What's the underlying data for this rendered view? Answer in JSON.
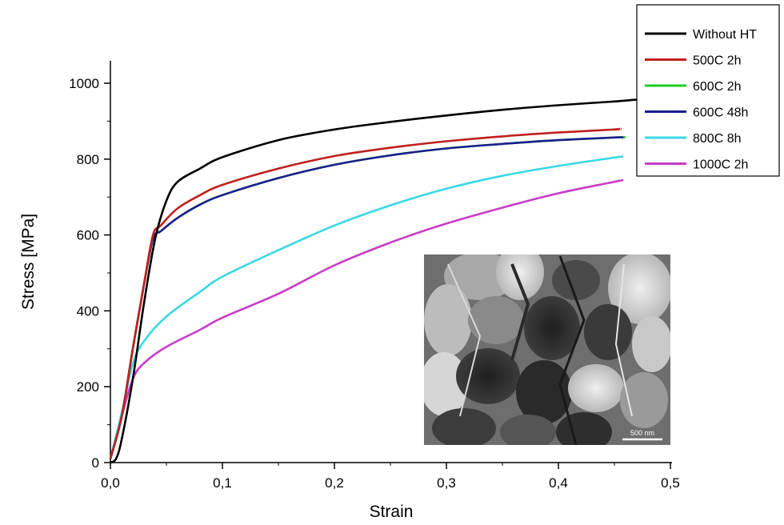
{
  "chart_data": {
    "type": "line",
    "title": "",
    "xlabel": "Strain",
    "ylabel": "Stress [MPa]",
    "xlim": [
      0,
      0.5
    ],
    "ylim": [
      0,
      1050
    ],
    "x_ticks": [
      0,
      0.1,
      0.2,
      0.3,
      0.4,
      0.5
    ],
    "x_tick_labels": [
      "0,0",
      "0,1",
      "0,2",
      "0,3",
      "0,4",
      "0,5"
    ],
    "y_ticks": [
      0,
      200,
      400,
      600,
      800,
      1000
    ],
    "y_tick_labels": [
      "0",
      "200",
      "400",
      "600",
      "800",
      "1000"
    ],
    "grid": false,
    "legend_position": "top-right",
    "series": [
      {
        "name": "Without HT",
        "color": "#000000",
        "points": [
          [
            0,
            0
          ],
          [
            0.005,
            10
          ],
          [
            0.01,
            60
          ],
          [
            0.02,
            220
          ],
          [
            0.03,
            420
          ],
          [
            0.04,
            590
          ],
          [
            0.05,
            690
          ],
          [
            0.06,
            740
          ],
          [
            0.08,
            775
          ],
          [
            0.1,
            805
          ],
          [
            0.15,
            850
          ],
          [
            0.2,
            878
          ],
          [
            0.25,
            898
          ],
          [
            0.3,
            915
          ],
          [
            0.35,
            930
          ],
          [
            0.4,
            942
          ],
          [
            0.45,
            952
          ],
          [
            0.47,
            957
          ]
        ]
      },
      {
        "name": "500C 2h",
        "color": "#c0201e",
        "points": [
          [
            0,
            10
          ],
          [
            0.01,
            120
          ],
          [
            0.02,
            300
          ],
          [
            0.03,
            470
          ],
          [
            0.038,
            600
          ],
          [
            0.045,
            625
          ],
          [
            0.06,
            670
          ],
          [
            0.08,
            705
          ],
          [
            0.1,
            732
          ],
          [
            0.15,
            775
          ],
          [
            0.2,
            808
          ],
          [
            0.25,
            830
          ],
          [
            0.3,
            847
          ],
          [
            0.35,
            860
          ],
          [
            0.4,
            870
          ],
          [
            0.45,
            878
          ],
          [
            0.455,
            880
          ]
        ]
      },
      {
        "name": "600C 2h",
        "color": "#22cc22",
        "points": [
          [
            0,
            10
          ],
          [
            0.01,
            120
          ],
          [
            0.02,
            300
          ],
          [
            0.03,
            470
          ],
          [
            0.038,
            590
          ],
          [
            0.045,
            610
          ],
          [
            0.06,
            645
          ],
          [
            0.08,
            680
          ],
          [
            0.1,
            705
          ],
          [
            0.15,
            750
          ],
          [
            0.2,
            785
          ],
          [
            0.25,
            810
          ],
          [
            0.3,
            828
          ],
          [
            0.35,
            840
          ],
          [
            0.4,
            850
          ],
          [
            0.45,
            857
          ],
          [
            0.46,
            858
          ]
        ]
      },
      {
        "name": "600C 48h",
        "color": "#1a1f8c",
        "points": [
          [
            0,
            10
          ],
          [
            0.01,
            120
          ],
          [
            0.02,
            300
          ],
          [
            0.03,
            470
          ],
          [
            0.038,
            590
          ],
          [
            0.045,
            610
          ],
          [
            0.06,
            645
          ],
          [
            0.08,
            680
          ],
          [
            0.1,
            705
          ],
          [
            0.15,
            750
          ],
          [
            0.2,
            785
          ],
          [
            0.25,
            810
          ],
          [
            0.3,
            828
          ],
          [
            0.35,
            840
          ],
          [
            0.4,
            850
          ],
          [
            0.45,
            857
          ],
          [
            0.458,
            857
          ]
        ]
      },
      {
        "name": "800C 8h",
        "color": "#3ad8e6",
        "points": [
          [
            0,
            10
          ],
          [
            0.01,
            130
          ],
          [
            0.02,
            260
          ],
          [
            0.03,
            320
          ],
          [
            0.05,
            385
          ],
          [
            0.08,
            450
          ],
          [
            0.1,
            490
          ],
          [
            0.15,
            560
          ],
          [
            0.2,
            625
          ],
          [
            0.25,
            678
          ],
          [
            0.3,
            722
          ],
          [
            0.35,
            756
          ],
          [
            0.4,
            782
          ],
          [
            0.45,
            804
          ],
          [
            0.458,
            807
          ]
        ]
      },
      {
        "name": "1000C 2h",
        "color": "#c83cc8",
        "points": [
          [
            0,
            10
          ],
          [
            0.01,
            120
          ],
          [
            0.02,
            220
          ],
          [
            0.03,
            262
          ],
          [
            0.05,
            305
          ],
          [
            0.08,
            350
          ],
          [
            0.1,
            382
          ],
          [
            0.15,
            445
          ],
          [
            0.2,
            520
          ],
          [
            0.25,
            580
          ],
          [
            0.3,
            630
          ],
          [
            0.35,
            672
          ],
          [
            0.4,
            710
          ],
          [
            0.45,
            740
          ],
          [
            0.458,
            745
          ]
        ]
      }
    ]
  },
  "inset": {
    "scale_bar_label": "500 nm"
  }
}
